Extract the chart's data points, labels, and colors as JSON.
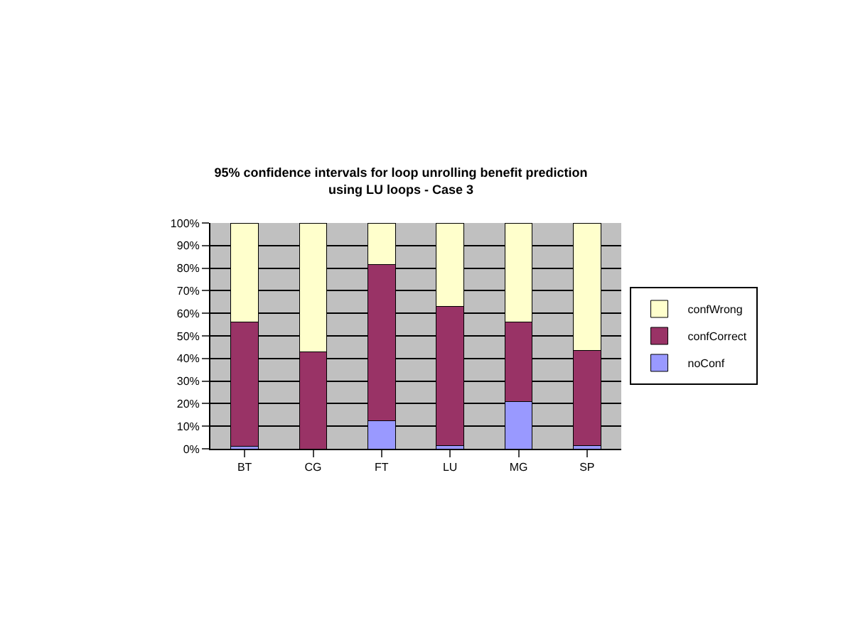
{
  "chart_data": {
    "type": "bar",
    "title": "95% confidence intervals for loop unrolling benefit prediction\nusing LU loops - Case 3",
    "categories": [
      "BT",
      "CG",
      "FT",
      "LU",
      "MG",
      "SP"
    ],
    "stacked": true,
    "series": [
      {
        "name": "noConf",
        "color": "#9999ff",
        "values": [
          1,
          0,
          12.5,
          1.5,
          21,
          1.5
        ]
      },
      {
        "name": "confCorrect",
        "color": "#993366",
        "values": [
          55,
          43,
          69,
          61.5,
          35,
          42
        ]
      },
      {
        "name": "confWrong",
        "color": "#ffffcc",
        "values": [
          44,
          57,
          18.5,
          37,
          44,
          56.5
        ]
      }
    ],
    "ylim": [
      0,
      100
    ],
    "yticks": [
      {
        "value": 0,
        "label": "0%"
      },
      {
        "value": 10,
        "label": "10%"
      },
      {
        "value": 20,
        "label": "20%"
      },
      {
        "value": 30,
        "label": "30%"
      },
      {
        "value": 40,
        "label": "40%"
      },
      {
        "value": 50,
        "label": "50%"
      },
      {
        "value": 60,
        "label": "60%"
      },
      {
        "value": 70,
        "label": "70%"
      },
      {
        "value": 80,
        "label": "80%"
      },
      {
        "value": 90,
        "label": "90%"
      },
      {
        "value": 100,
        "label": "100%"
      }
    ],
    "grid": "y",
    "legend": "right"
  }
}
